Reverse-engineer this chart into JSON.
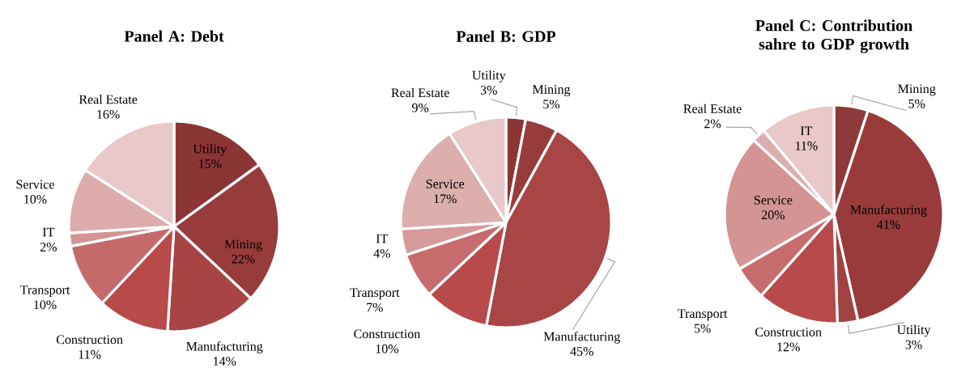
{
  "chart_data": [
    {
      "type": "pie",
      "title": "Panel A: Debt",
      "categories": [
        "Utility",
        "Mining",
        "Manufacturing",
        "Construction",
        "Transport",
        "IT",
        "Service",
        "Real Estate"
      ],
      "values": [
        15,
        22,
        14,
        11,
        10,
        2,
        10,
        16
      ],
      "value_labels": [
        "15%",
        "22%",
        "14%",
        "11%",
        "10%",
        "2%",
        "10%",
        "16%"
      ],
      "colors": [
        "#8b3535",
        "#983b3b",
        "#a84444",
        "#b84a4a",
        "#c56a6a",
        "#d49494",
        "#ddabab",
        "#e8c8c8"
      ]
    },
    {
      "type": "pie",
      "title": "Panel B: GDP",
      "categories": [
        "Utility",
        "Mining",
        "Manufacturing",
        "Construction",
        "Transport",
        "IT",
        "Service",
        "Real Estate"
      ],
      "values": [
        3,
        5,
        45,
        10,
        7,
        4,
        17,
        9
      ],
      "value_labels": [
        "3%",
        "5%",
        "45%",
        "10%",
        "7%",
        "4%",
        "17%",
        "9%"
      ],
      "colors": [
        "#8b3535",
        "#983b3b",
        "#a84545",
        "#b84a4a",
        "#c66c6c",
        "#d69a9a",
        "#dcaeae",
        "#e8c8c8"
      ]
    },
    {
      "type": "pie",
      "title": "Panel C: Contribution sahre to GDP growth",
      "categories": [
        "Mining",
        "Manufacturing",
        "Utility",
        "Construction",
        "Transport",
        "Service",
        "Real Estate",
        "IT"
      ],
      "values": [
        5,
        41,
        3,
        12,
        5,
        20,
        2,
        11
      ],
      "value_labels": [
        "5%",
        "41%",
        "3%",
        "12%",
        "5%",
        "20%",
        "2%",
        "11%"
      ],
      "colors": [
        "#8f3a3a",
        "#993b3b",
        "#a04242",
        "#b84a4a",
        "#c66c6c",
        "#d49494",
        "#dcaeae",
        "#e8c8c8"
      ]
    }
  ]
}
